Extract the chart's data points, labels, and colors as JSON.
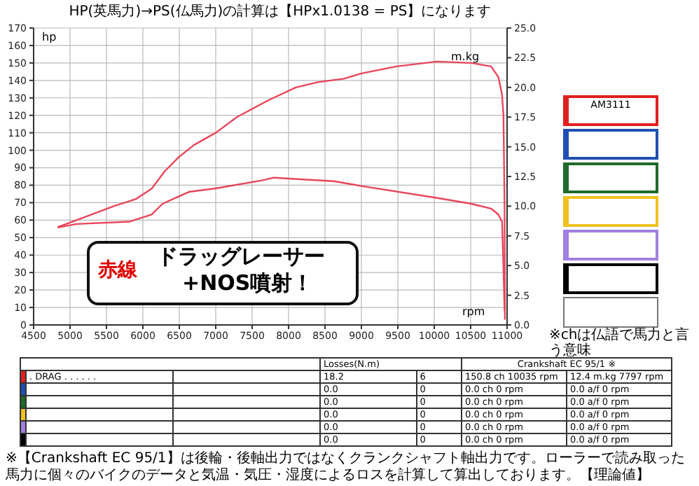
{
  "chart_data": {
    "type": "line",
    "title": "HP(英馬力)→PS(仏馬力)の計算は【HPx1.0138 = PS】になります",
    "xlabel": "rpm",
    "ylabel": "hp",
    "y2label": "m.kg",
    "xlim": [
      4500,
      11000
    ],
    "xticks": [
      4500,
      5000,
      5500,
      6000,
      6500,
      7000,
      7500,
      8000,
      8500,
      9000,
      9500,
      10000,
      10500,
      11000
    ],
    "ylim": [
      0,
      170
    ],
    "yticks": [
      0,
      10,
      20,
      30,
      40,
      50,
      60,
      70,
      80,
      90,
      100,
      110,
      120,
      130,
      140,
      150,
      160,
      170
    ],
    "y2lim": [
      0,
      25
    ],
    "y2ticks": [
      {
        "value": 0,
        "label": "0.0"
      },
      {
        "value": 2.5,
        "label": "2.5"
      },
      {
        "value": 5,
        "label": "5.0"
      },
      {
        "value": 7.5,
        "label": "7.5"
      },
      {
        "value": 10,
        "label": "10.0"
      },
      {
        "value": 12.5,
        "label": "12.5"
      },
      {
        "value": 15,
        "label": "15.0"
      },
      {
        "value": 17.5,
        "label": "17.5"
      },
      {
        "value": 20,
        "label": "20.0"
      },
      {
        "value": 22.5,
        "label": "22.5"
      },
      {
        "value": 25,
        "label": "25.0"
      }
    ],
    "grid": true,
    "marker": "none",
    "line_style": "solid",
    "series": [
      {
        "color": "#e8455a",
        "x": [
          4830,
          5090,
          5600,
          5900,
          6120,
          6300,
          6490,
          6700,
          7000,
          7290,
          7740,
          8100,
          8400,
          8760,
          9000,
          9480,
          10035,
          10510,
          10780,
          10880,
          10930,
          10950,
          10965,
          10970
        ],
        "values": [
          56,
          60,
          68,
          72,
          78,
          88,
          96,
          103,
          110,
          119,
          129,
          136,
          139,
          141,
          144,
          148,
          150.8,
          150,
          148,
          142,
          132,
          120,
          70,
          3
        ]
      },
      {
        "color": "#e8455a",
        "axis": "y2",
        "x": [
          4830,
          5090,
          5820,
          6120,
          6270,
          6630,
          7000,
          7660,
          7797,
          8620,
          9000,
          10030,
          10510,
          10780,
          10880,
          10930,
          10950,
          10965
        ],
        "values": [
          8.2,
          8.5,
          8.7,
          9.3,
          10.2,
          11.2,
          11.5,
          12.2,
          12.4,
          12.1,
          11.7,
          10.7,
          10.2,
          9.8,
          9.3,
          8.7,
          4.9,
          1.2
        ]
      }
    ],
    "annotations": [
      "赤線",
      "ドラッグレーサー",
      "+NOS噴射！",
      "AM3111",
      "※chは仏語で馬力と言う意味",
      "Losses(N.m)",
      "Crankshaft EC 95/1 ※",
      ". DRAG . . . . . .",
      "18.2",
      "6",
      "150.8 ch 10035 rpm",
      "12.4 m.kg 7797 rpm",
      "0.0",
      "0",
      "0.0 ch 0 rpm",
      "0.0 a/f 0 rpm",
      "0.0",
      "0",
      "0.0 ch 0 rpm",
      "0.0 a/f 0 rpm",
      "0.0",
      "0",
      "0.0 ch 0 rpm",
      "0.0 a/f 0 rpm",
      "0.0",
      "0",
      "0.0 ch 0 rpm",
      "0.0 a/f 0 rpm",
      "0.0",
      "0",
      "0.0 ch 0 rpm",
      "0.0 a/f 0 rpm",
      "※【Crankshaft EC 95/1】は後輪・後軸出力ではなくクランクシャフト軸出力です。ローラーで読み取った馬力に個々のバイクのデータと気温・気圧・湿度によるロスを計算して算出しております。【理論値】"
    ]
  }
}
